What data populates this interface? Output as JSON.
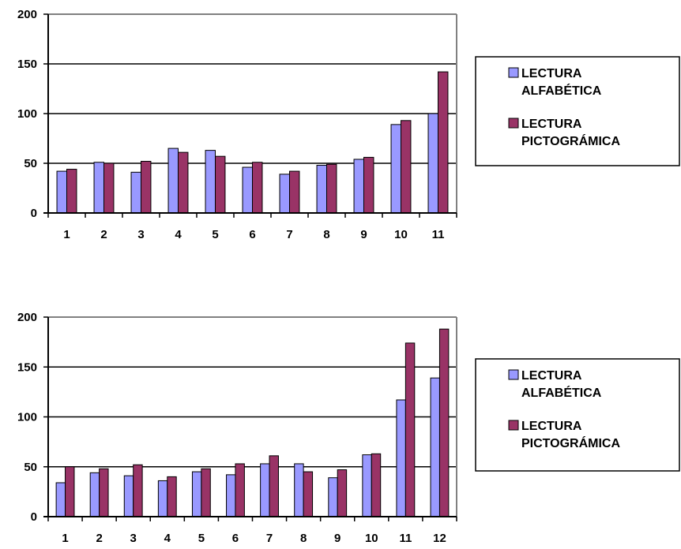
{
  "chart_data": [
    {
      "type": "bar",
      "categories": [
        "1",
        "2",
        "3",
        "4",
        "5",
        "6",
        "7",
        "8",
        "9",
        "10",
        "11"
      ],
      "ylim": [
        0,
        200
      ],
      "yticks": [
        0,
        50,
        100,
        150,
        200
      ],
      "grid": true,
      "legend_position": "right",
      "series": [
        {
          "name": "LECTURA ALFABÉTICA",
          "name_lines": [
            "LECTURA",
            "ALFABÉTICA"
          ],
          "color": "#9999ff",
          "values": [
            42,
            51,
            41,
            65,
            63,
            46,
            39,
            48,
            54,
            89,
            100
          ]
        },
        {
          "name": "LECTURA PICTOGRÁMICA",
          "name_lines": [
            "LECTURA",
            "PICTOGRÁMICA"
          ],
          "color": "#993366",
          "values": [
            44,
            50,
            52,
            61,
            57,
            51,
            42,
            49,
            56,
            93,
            142
          ]
        }
      ]
    },
    {
      "type": "bar",
      "categories": [
        "1",
        "2",
        "3",
        "4",
        "5",
        "6",
        "7",
        "8",
        "9",
        "10",
        "11",
        "12"
      ],
      "ylim": [
        0,
        200
      ],
      "yticks": [
        0,
        50,
        100,
        150,
        200
      ],
      "grid": true,
      "legend_position": "right",
      "series": [
        {
          "name": "LECTURA ALFABÉTICA",
          "name_lines": [
            "LECTURA",
            "ALFABÉTICA"
          ],
          "color": "#9999ff",
          "values": [
            34,
            44,
            41,
            36,
            45,
            42,
            53,
            53,
            39,
            62,
            117,
            139
          ]
        },
        {
          "name": "LECTURA PICTOGRÁMICA",
          "name_lines": [
            "LECTURA",
            "PICTOGRÁMICA"
          ],
          "color": "#993366",
          "values": [
            50,
            48,
            52,
            40,
            48,
            53,
            61,
            45,
            47,
            63,
            174,
            188
          ]
        }
      ]
    }
  ]
}
